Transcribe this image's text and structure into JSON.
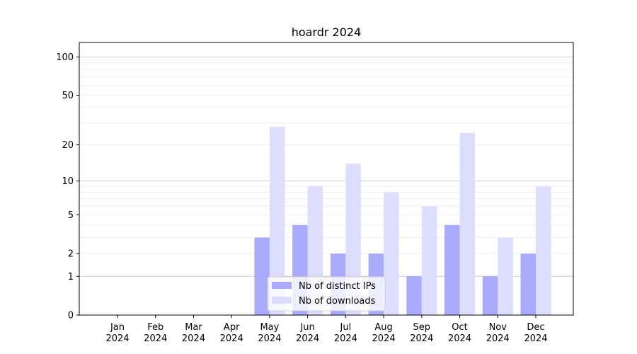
{
  "chart_data": {
    "type": "bar",
    "title": "hoardr 2024",
    "xlabel": "",
    "ylabel": "",
    "yscale": "symlog",
    "ylim": [
      0,
      130
    ],
    "y_ticks": [
      0,
      1,
      2,
      5,
      10,
      20,
      50,
      100
    ],
    "categories": [
      "Jan",
      "Feb",
      "Mar",
      "Apr",
      "May",
      "Jun",
      "Jul",
      "Aug",
      "Sep",
      "Oct",
      "Nov",
      "Dec"
    ],
    "category_year": "2024",
    "series": [
      {
        "name": "Nb of distinct IPs",
        "color": "#aaaaff",
        "values": [
          0,
          0,
          0,
          0,
          3,
          4,
          2,
          2,
          1,
          4,
          1,
          2
        ]
      },
      {
        "name": "Nb of downloads",
        "color": "#ddddff",
        "values": [
          0,
          0,
          0,
          0,
          28,
          9,
          14,
          8,
          6,
          25,
          3,
          9
        ]
      }
    ],
    "grid": "horizontal",
    "legend": "bottom-center"
  }
}
